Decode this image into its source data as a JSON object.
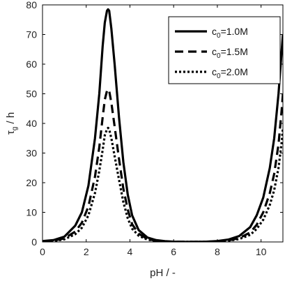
{
  "chart_data": {
    "type": "line",
    "xlabel": "pH / -",
    "ylabel": {
      "main": "τ",
      "sub": "g",
      "rest": " / h"
    },
    "xlim": [
      0,
      11
    ],
    "ylim": [
      0,
      80
    ],
    "x_ticks": [
      0,
      2,
      4,
      6,
      8,
      10
    ],
    "y_ticks": [
      0,
      10,
      20,
      30,
      40,
      50,
      60,
      70,
      80
    ],
    "grid": false,
    "legend_position": "top-right",
    "series": [
      {
        "name": {
          "main": "c",
          "sub": "0",
          "rest": "=1.0M"
        },
        "style": "solid",
        "color": "#000000",
        "points": [
          [
            0,
            0.3
          ],
          [
            0.5,
            0.6
          ],
          [
            1,
            1.8
          ],
          [
            1.5,
            5.5
          ],
          [
            1.8,
            10
          ],
          [
            2.1,
            19
          ],
          [
            2.4,
            35
          ],
          [
            2.6,
            50
          ],
          [
            2.75,
            66
          ],
          [
            2.85,
            74
          ],
          [
            2.95,
            78
          ],
          [
            3.0,
            78.5
          ],
          [
            3.05,
            78
          ],
          [
            3.15,
            72
          ],
          [
            3.3,
            60
          ],
          [
            3.5,
            42
          ],
          [
            3.7,
            27
          ],
          [
            3.9,
            16
          ],
          [
            4.1,
            9
          ],
          [
            4.4,
            4
          ],
          [
            4.8,
            1.5
          ],
          [
            5.2,
            0.6
          ],
          [
            5.6,
            0.25
          ],
          [
            6,
            0.1
          ],
          [
            6.5,
            0.05
          ],
          [
            7,
            0.05
          ],
          [
            7.5,
            0.1
          ],
          [
            8,
            0.3
          ],
          [
            8.5,
            0.8
          ],
          [
            9,
            2
          ],
          [
            9.5,
            5
          ],
          [
            9.8,
            9
          ],
          [
            10.1,
            15
          ],
          [
            10.4,
            25
          ],
          [
            10.6,
            35
          ],
          [
            10.8,
            50
          ],
          [
            10.95,
            65
          ],
          [
            11,
            70
          ]
        ]
      },
      {
        "name": {
          "main": "c",
          "sub": "0",
          "rest": "=1.5M"
        },
        "style": "dashed",
        "color": "#000000",
        "points": [
          [
            0,
            0.2
          ],
          [
            0.5,
            0.4
          ],
          [
            1,
            1.2
          ],
          [
            1.5,
            3.5
          ],
          [
            1.8,
            6.5
          ],
          [
            2.1,
            12
          ],
          [
            2.4,
            22
          ],
          [
            2.6,
            32
          ],
          [
            2.75,
            42
          ],
          [
            2.85,
            48
          ],
          [
            2.95,
            51
          ],
          [
            3.0,
            51.5
          ],
          [
            3.05,
            51
          ],
          [
            3.15,
            47
          ],
          [
            3.3,
            39
          ],
          [
            3.5,
            28
          ],
          [
            3.7,
            18
          ],
          [
            3.9,
            11
          ],
          [
            4.1,
            6
          ],
          [
            4.4,
            2.8
          ],
          [
            4.8,
            1.0
          ],
          [
            5.2,
            0.4
          ],
          [
            5.6,
            0.15
          ],
          [
            6,
            0.07
          ],
          [
            6.5,
            0.04
          ],
          [
            7,
            0.04
          ],
          [
            7.5,
            0.07
          ],
          [
            8,
            0.2
          ],
          [
            8.5,
            0.5
          ],
          [
            9,
            1.3
          ],
          [
            9.5,
            3.2
          ],
          [
            9.8,
            5.8
          ],
          [
            10.1,
            10
          ],
          [
            10.4,
            16.5
          ],
          [
            10.6,
            23
          ],
          [
            10.8,
            33
          ],
          [
            10.95,
            45
          ],
          [
            11,
            50
          ]
        ]
      },
      {
        "name": {
          "main": "c",
          "sub": "0",
          "rest": "=2.0M"
        },
        "style": "dotted",
        "color": "#000000",
        "points": [
          [
            0,
            0.15
          ],
          [
            0.5,
            0.3
          ],
          [
            1,
            0.9
          ],
          [
            1.5,
            2.6
          ],
          [
            1.8,
            4.8
          ],
          [
            2.1,
            9
          ],
          [
            2.4,
            16.5
          ],
          [
            2.6,
            24
          ],
          [
            2.75,
            31
          ],
          [
            2.85,
            36
          ],
          [
            2.95,
            38
          ],
          [
            3.0,
            38.5
          ],
          [
            3.05,
            38
          ],
          [
            3.15,
            35
          ],
          [
            3.3,
            29
          ],
          [
            3.5,
            21
          ],
          [
            3.7,
            13.5
          ],
          [
            3.9,
            8
          ],
          [
            4.1,
            4.5
          ],
          [
            4.4,
            2.1
          ],
          [
            4.8,
            0.8
          ],
          [
            5.2,
            0.3
          ],
          [
            5.6,
            0.12
          ],
          [
            6,
            0.05
          ],
          [
            6.5,
            0.03
          ],
          [
            7,
            0.03
          ],
          [
            7.5,
            0.05
          ],
          [
            8,
            0.15
          ],
          [
            8.5,
            0.4
          ],
          [
            9,
            1.0
          ],
          [
            9.5,
            2.4
          ],
          [
            9.8,
            4.4
          ],
          [
            10.1,
            7.5
          ],
          [
            10.4,
            12.5
          ],
          [
            10.6,
            17.5
          ],
          [
            10.8,
            25
          ],
          [
            10.95,
            34
          ],
          [
            11,
            38.5
          ]
        ]
      }
    ]
  }
}
